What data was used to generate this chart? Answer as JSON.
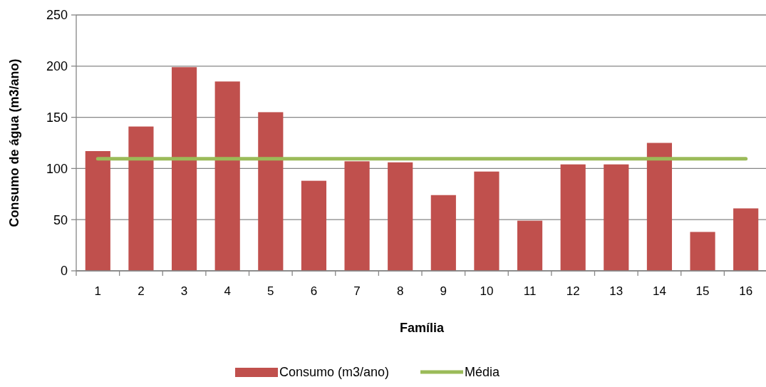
{
  "chart_data": {
    "type": "bar",
    "xlabel": "Família",
    "ylabel": "Consumo de água (m3/ano)",
    "categories": [
      "1",
      "2",
      "3",
      "4",
      "5",
      "6",
      "7",
      "8",
      "9",
      "10",
      "11",
      "12",
      "13",
      "14",
      "15",
      "16"
    ],
    "series": [
      {
        "name": "Consumo (m3/ano)",
        "color": "#c0504d",
        "values": [
          117,
          141,
          199,
          185,
          155,
          88,
          107,
          106,
          74,
          97,
          49,
          104,
          104,
          125,
          38,
          61
        ]
      },
      {
        "name": "Média",
        "type": "line",
        "color": "#9bbb59",
        "values": [
          109.5,
          109.5,
          109.5,
          109.5,
          109.5,
          109.5,
          109.5,
          109.5,
          109.5,
          109.5,
          109.5,
          109.5,
          109.5,
          109.5,
          109.5,
          109.5
        ]
      }
    ],
    "ylim": [
      0,
      250
    ],
    "yticks": [
      0,
      50,
      100,
      150,
      200,
      250
    ],
    "grid": "y",
    "legend": "bottom"
  }
}
